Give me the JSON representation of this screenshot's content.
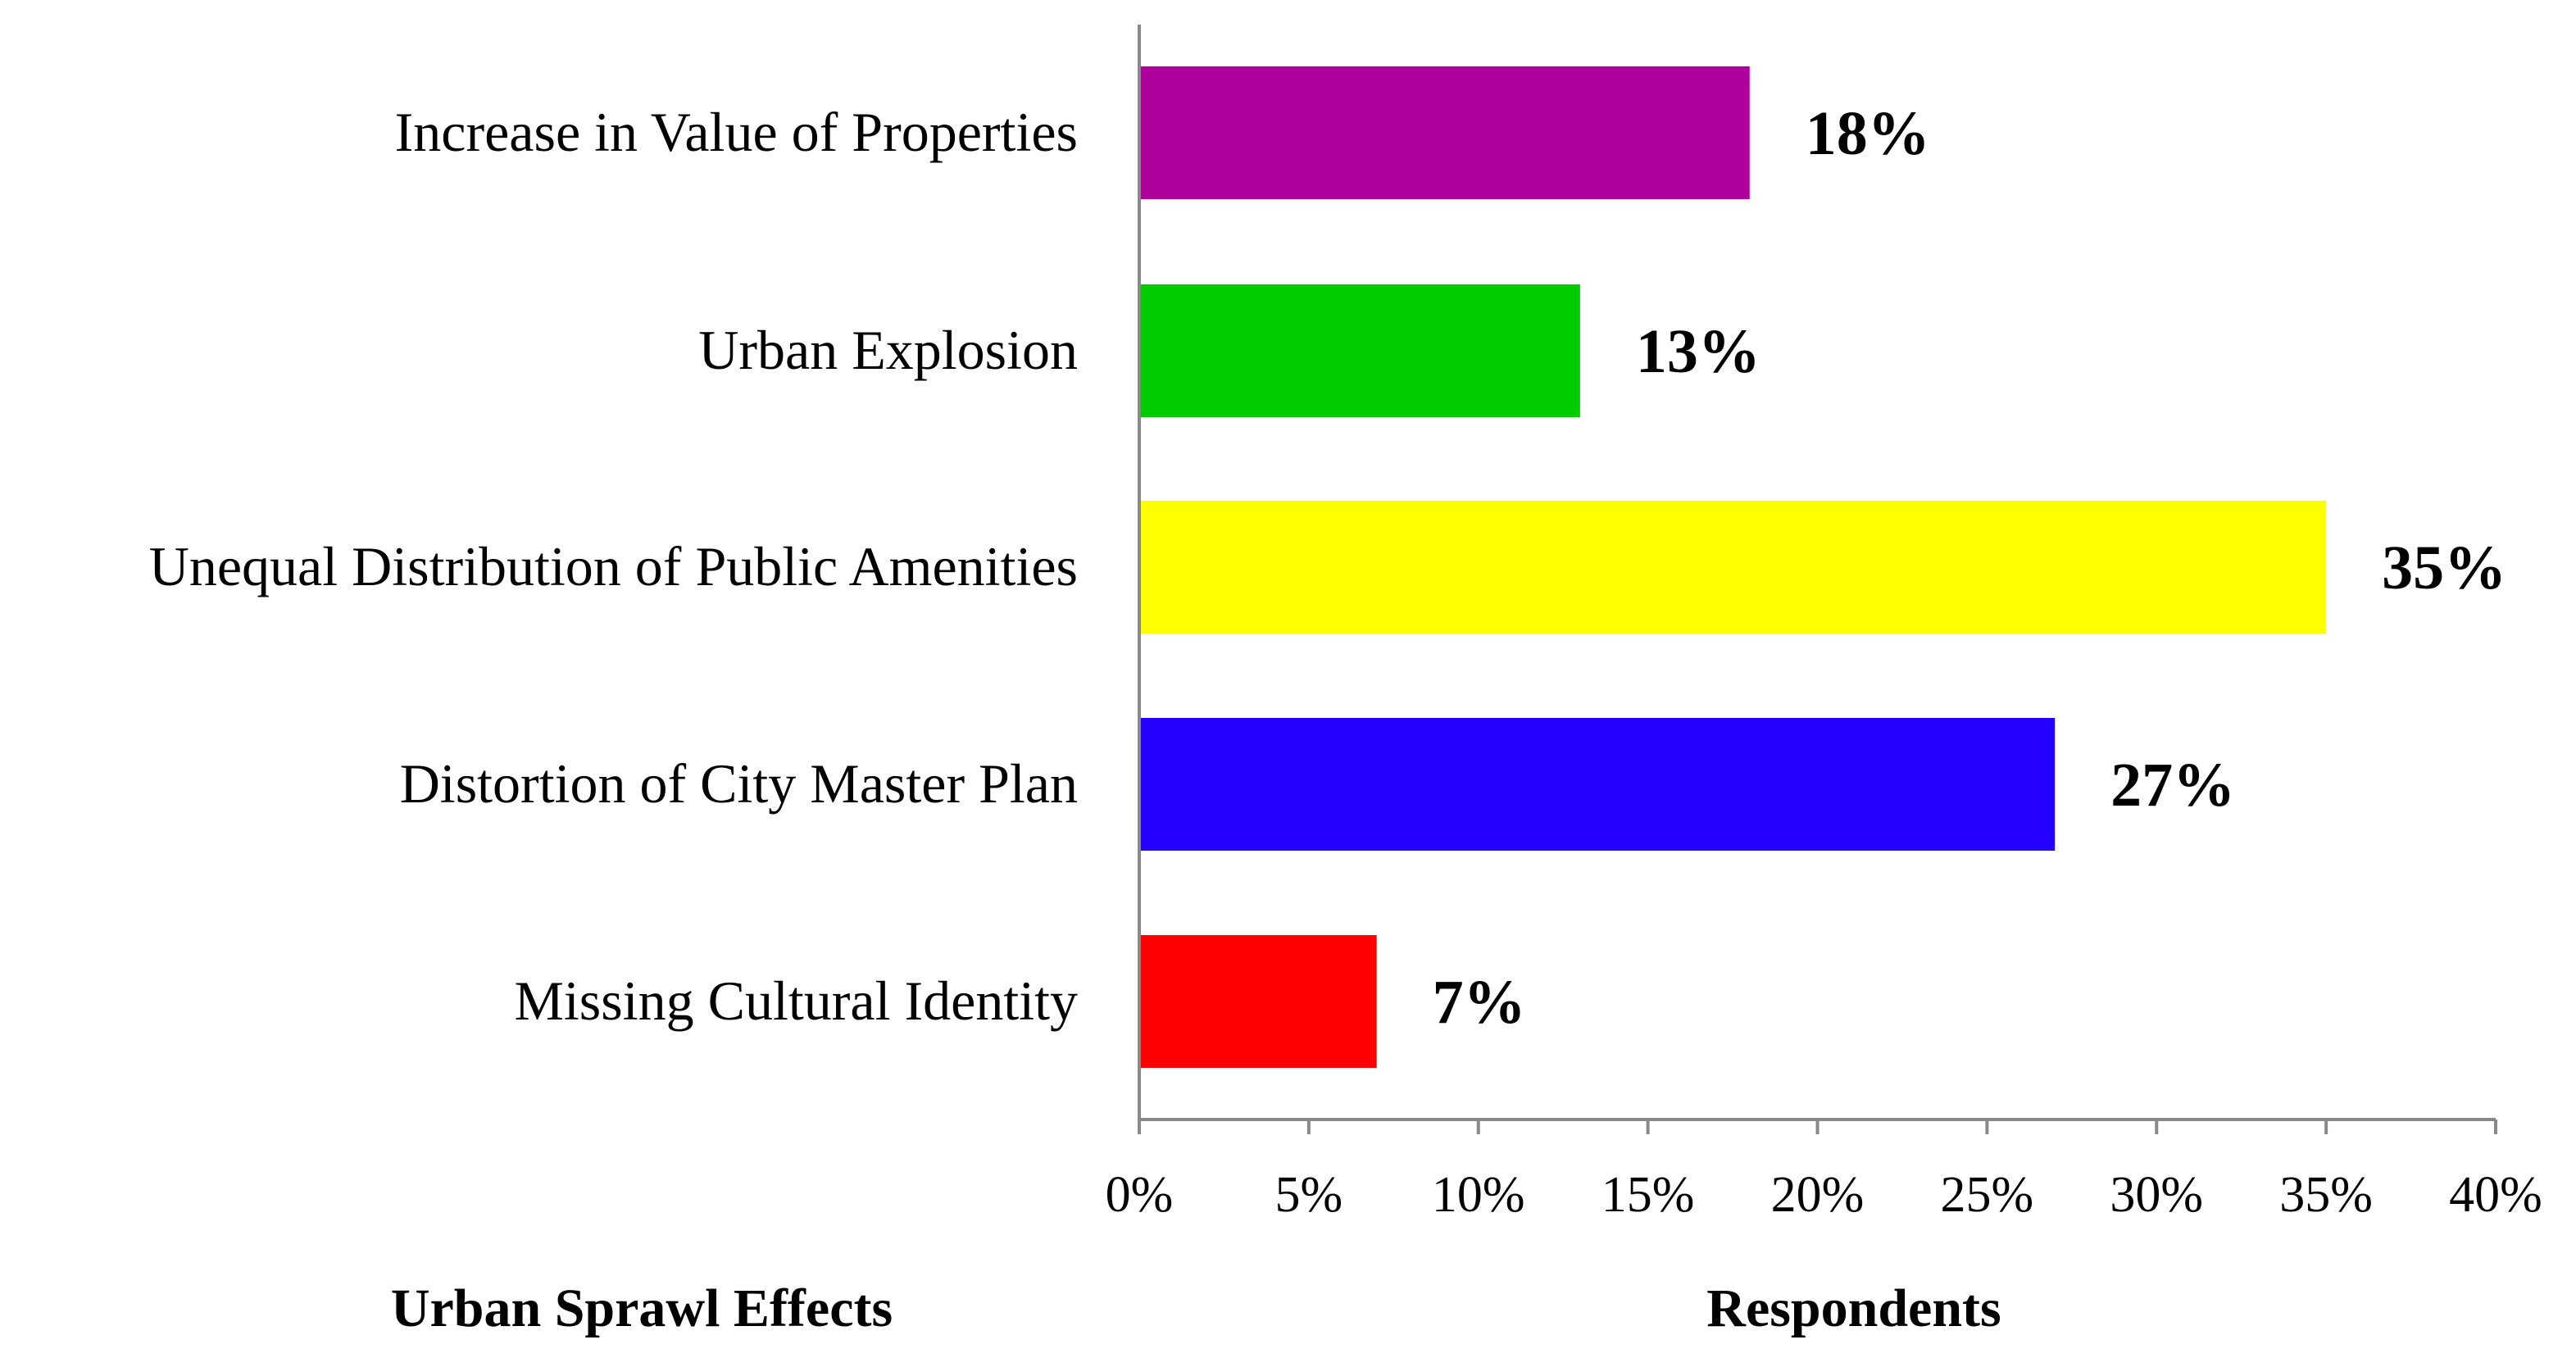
{
  "chart_data": {
    "type": "bar",
    "orientation": "horizontal",
    "categories": [
      "Increase in Value of Properties",
      "Urban Explosion",
      "Unequal Distribution of Public Amenities",
      "Distortion of City Master Plan",
      "Missing Cultural Identity"
    ],
    "values": [
      18,
      13,
      35,
      27,
      7
    ],
    "value_labels": [
      "18%",
      "13%",
      "35%",
      "27%",
      "7%"
    ],
    "bar_colors": [
      "#b0009c",
      "#00cc00",
      "#ffff00",
      "#2400ff",
      "#ff0000"
    ],
    "x_ticks": [
      0,
      5,
      10,
      15,
      20,
      25,
      30,
      35,
      40
    ],
    "x_tick_labels": [
      "0%",
      "5%",
      "10%",
      "15%",
      "20%",
      "25%",
      "30%",
      "35%",
      "40%"
    ],
    "xlim": [
      0,
      40
    ],
    "xlabel": "Respondents",
    "ylabel": "Urban Sprawl Effects",
    "title": "",
    "grid": false,
    "legend": "none",
    "axis_color": "#898989"
  }
}
